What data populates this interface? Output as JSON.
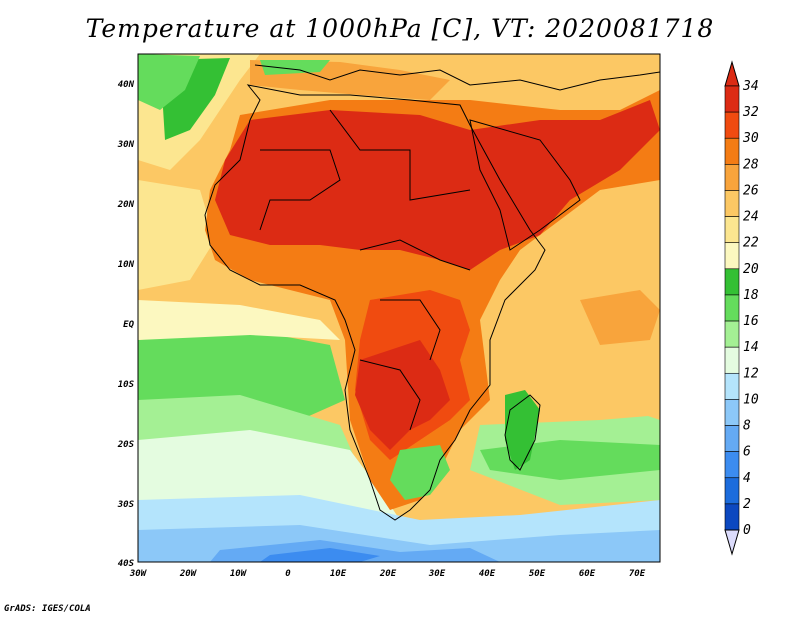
{
  "title": "Temperature at 1000hPa [C], VT: 2020081718",
  "footer": "GrADS: IGES/COLA",
  "axes": {
    "x_labels": [
      "30W",
      "20W",
      "10W",
      "0",
      "10E",
      "20E",
      "30E",
      "40E",
      "50E",
      "60E",
      "70E"
    ],
    "y_labels": [
      "40N",
      "30N",
      "20N",
      "10N",
      "EQ",
      "10S",
      "20S",
      "30S",
      "40S"
    ]
  },
  "colorbar": {
    "labels": [
      "34",
      "32",
      "30",
      "28",
      "26",
      "24",
      "22",
      "20",
      "18",
      "16",
      "14",
      "12",
      "10",
      "8",
      "6",
      "4",
      "2",
      "0"
    ],
    "colors": [
      "#dc2b14",
      "#f04b10",
      "#f47c14",
      "#f8a43c",
      "#fcc864",
      "#fce690",
      "#fcf8c0",
      "#34c034",
      "#64dc5c",
      "#a4f094",
      "#e4fce0",
      "#b4e4fc",
      "#8cc8f8",
      "#64aaf4",
      "#3c8cf0",
      "#1c6cdc",
      "#0c48c0",
      "#041878"
    ]
  }
}
